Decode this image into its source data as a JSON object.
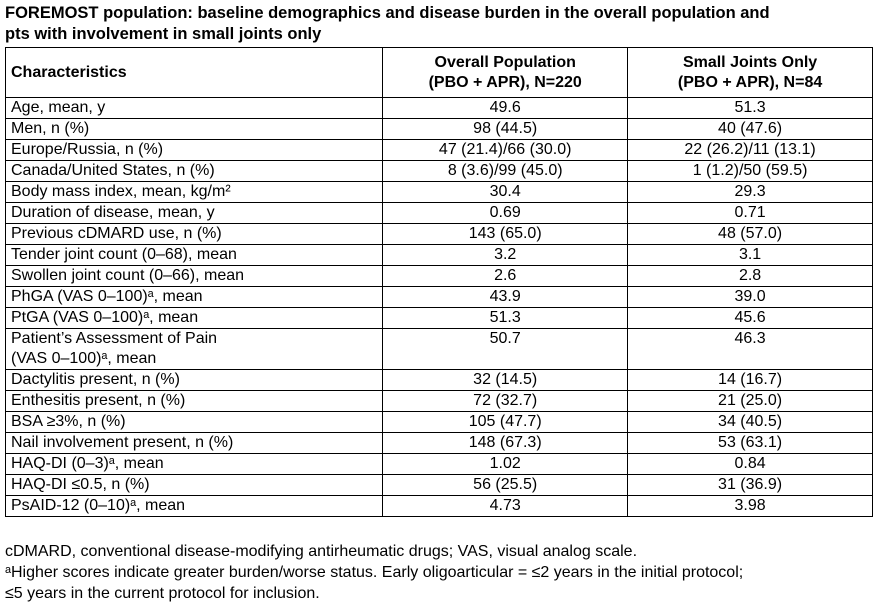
{
  "title": [
    "FOREMOST population: baseline demographics and disease burden in the overall population and",
    "pts with involvement in small joints only"
  ],
  "table": {
    "headers": [
      [
        "Characteristics"
      ],
      [
        "Overall Population",
        "(PBO + APR), N=220"
      ],
      [
        "Small Joints Only",
        "(PBO + APR), N=84"
      ]
    ],
    "rows": [
      [
        [
          "Age, mean, y"
        ],
        "49.6",
        "51.3"
      ],
      [
        [
          "Men, n (%)"
        ],
        "98 (44.5)",
        "40 (47.6)"
      ],
      [
        [
          "Europe/Russia, n (%)"
        ],
        "47 (21.4)/66 (30.0)",
        "22 (26.2)/11 (13.1)"
      ],
      [
        [
          "Canada/United States, n (%)"
        ],
        "8 (3.6)/99 (45.0)",
        "1 (1.2)/50 (59.5)"
      ],
      [
        [
          "Body mass index, mean, kg/m²"
        ],
        "30.4",
        "29.3"
      ],
      [
        [
          "Duration of disease, mean, y"
        ],
        "0.69",
        "0.71"
      ],
      [
        [
          "Previous cDMARD use, n (%)"
        ],
        "143 (65.0)",
        "48 (57.0)"
      ],
      [
        [
          "Tender joint count (0–68), mean"
        ],
        "3.2",
        "3.1"
      ],
      [
        [
          "Swollen joint count (0–66), mean"
        ],
        "2.6",
        "2.8"
      ],
      [
        [
          "PhGA (VAS 0–100)ᵃ, mean"
        ],
        "43.9",
        "39.0"
      ],
      [
        [
          "PtGA (VAS 0–100)ᵃ, mean"
        ],
        "51.3",
        "45.6"
      ],
      [
        [
          "Patient’s Assessment of Pain",
          "(VAS 0–100)ᵃ, mean"
        ],
        "50.7",
        "46.3"
      ],
      [
        [
          "Dactylitis present, n (%)"
        ],
        "32 (14.5)",
        "14 (16.7)"
      ],
      [
        [
          "Enthesitis present, n (%)"
        ],
        "72 (32.7)",
        "21 (25.0)"
      ],
      [
        [
          "BSA ≥3%, n (%)"
        ],
        "105 (47.7)",
        "34 (40.5)"
      ],
      [
        [
          "Nail involvement present, n (%)"
        ],
        "148 (67.3)",
        "53 (63.1)"
      ],
      [
        [
          "HAQ-DI (0–3)ᵃ, mean"
        ],
        "1.02",
        "0.84"
      ],
      [
        [
          "HAQ-DI ≤0.5, n (%)"
        ],
        "56 (25.5)",
        "31 (36.9)"
      ],
      [
        [
          "PsAID-12 (0–10)ᵃ, mean"
        ],
        "4.73",
        "3.98"
      ]
    ]
  },
  "footnotes": [
    "cDMARD, conventional disease-modifying antirheumatic drugs; VAS, visual analog scale.",
    "ᵃHigher scores indicate greater burden/worse status. Early oligoarticular = ≤2 years in the initial protocol;",
    "≤5 years in the current protocol for inclusion."
  ]
}
